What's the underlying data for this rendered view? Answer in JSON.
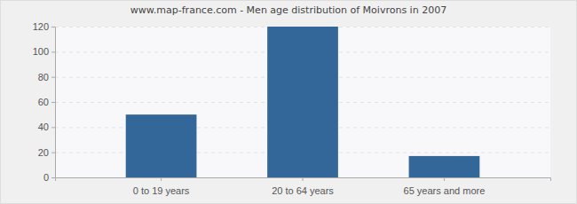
{
  "chart_data": {
    "type": "bar",
    "title": "www.map-france.com - Men age distribution of Moivrons in 2007",
    "categories": [
      "0 to 19 years",
      "20 to 64 years",
      "65 years and more"
    ],
    "values": [
      50,
      120,
      17
    ],
    "color": "#336699",
    "ylim": [
      0,
      120
    ],
    "yticks": [
      0,
      20,
      40,
      60,
      80,
      100,
      120
    ],
    "grid": true
  }
}
